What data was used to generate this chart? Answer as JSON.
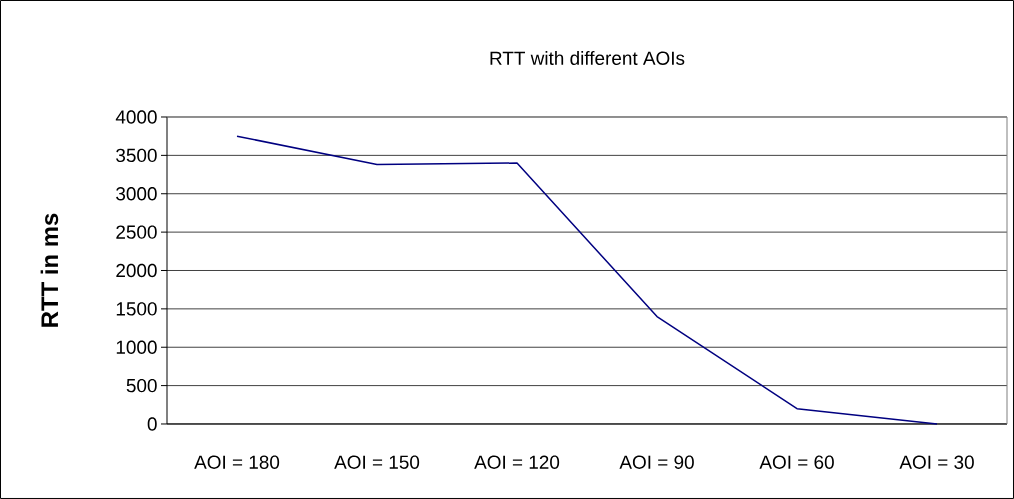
{
  "chart_data": {
    "type": "line",
    "title": "RTT with different AOIs",
    "ylabel": "RTT in ms",
    "categories": [
      "AOI = 180",
      "AOI = 150",
      "AOI = 120",
      "AOI = 90",
      "AOI = 60",
      "AOI = 30"
    ],
    "series": [
      {
        "color": "#000080",
        "values": [
          3750,
          3380,
          3400,
          1400,
          200,
          0
        ]
      }
    ],
    "ylim": [
      0,
      4000
    ],
    "yticks": [
      0,
      500,
      1000,
      1500,
      2000,
      2500,
      3000,
      3500,
      4000
    ],
    "grid": "y",
    "marker": "none",
    "line_style": "solid"
  }
}
